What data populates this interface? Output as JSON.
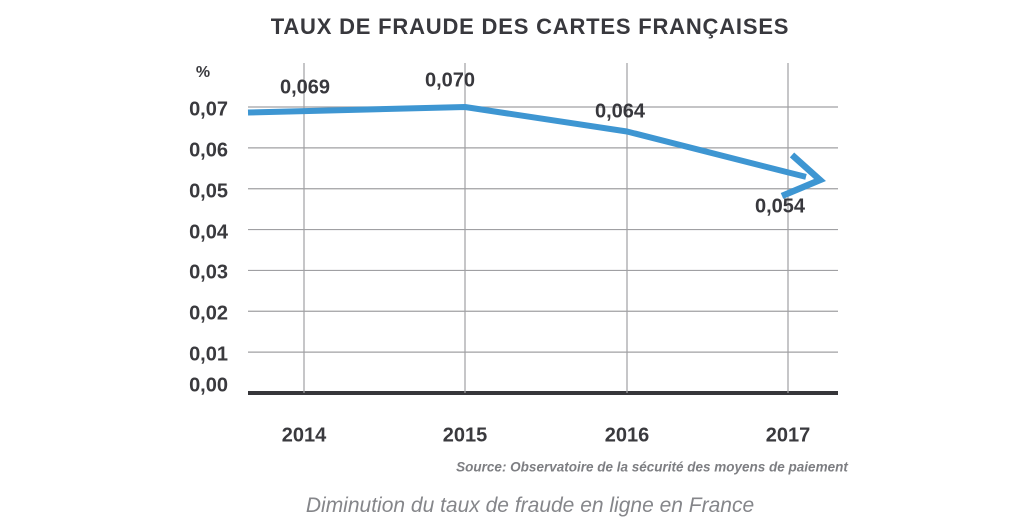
{
  "header": {
    "title": "TAUX DE FRAUDE DES CARTES FRANÇAISES"
  },
  "chart_data": {
    "type": "line",
    "title": "TAUX DE FRAUDE DES CARTES FRANÇAISES",
    "categories": [
      "2014",
      "2015",
      "2016",
      "2017"
    ],
    "values": [
      0.069,
      0.07,
      0.064,
      0.054
    ],
    "point_labels": [
      "0,069",
      "0,070",
      "0,064",
      "0,054"
    ],
    "unit_label": "%",
    "xlabel": "",
    "ylabel": "%",
    "ytick_labels": [
      "0,00",
      "0,01",
      "0,02",
      "0,03",
      "0,04",
      "0,05",
      "0,06",
      "0,07"
    ],
    "ytick_values": [
      0,
      0.01,
      0.02,
      0.03,
      0.04,
      0.05,
      0.06,
      0.07
    ],
    "ylim": [
      0,
      0.07
    ],
    "grid": true,
    "legend": "none",
    "trend_arrow": "down-right",
    "line_color": "#3e96d2"
  },
  "footer": {
    "source": "Source: Observatoire de la sécurité des moyens de paiement",
    "caption": "Diminution du taux de fraude en ligne en France"
  },
  "colors": {
    "line": "#3e96d2",
    "grid": "#a0a0a3",
    "axis": "#36363a",
    "text_dark": "#38383d",
    "text_muted": "#7d7e82",
    "caption": "#85868a",
    "background": "#ffffff"
  }
}
